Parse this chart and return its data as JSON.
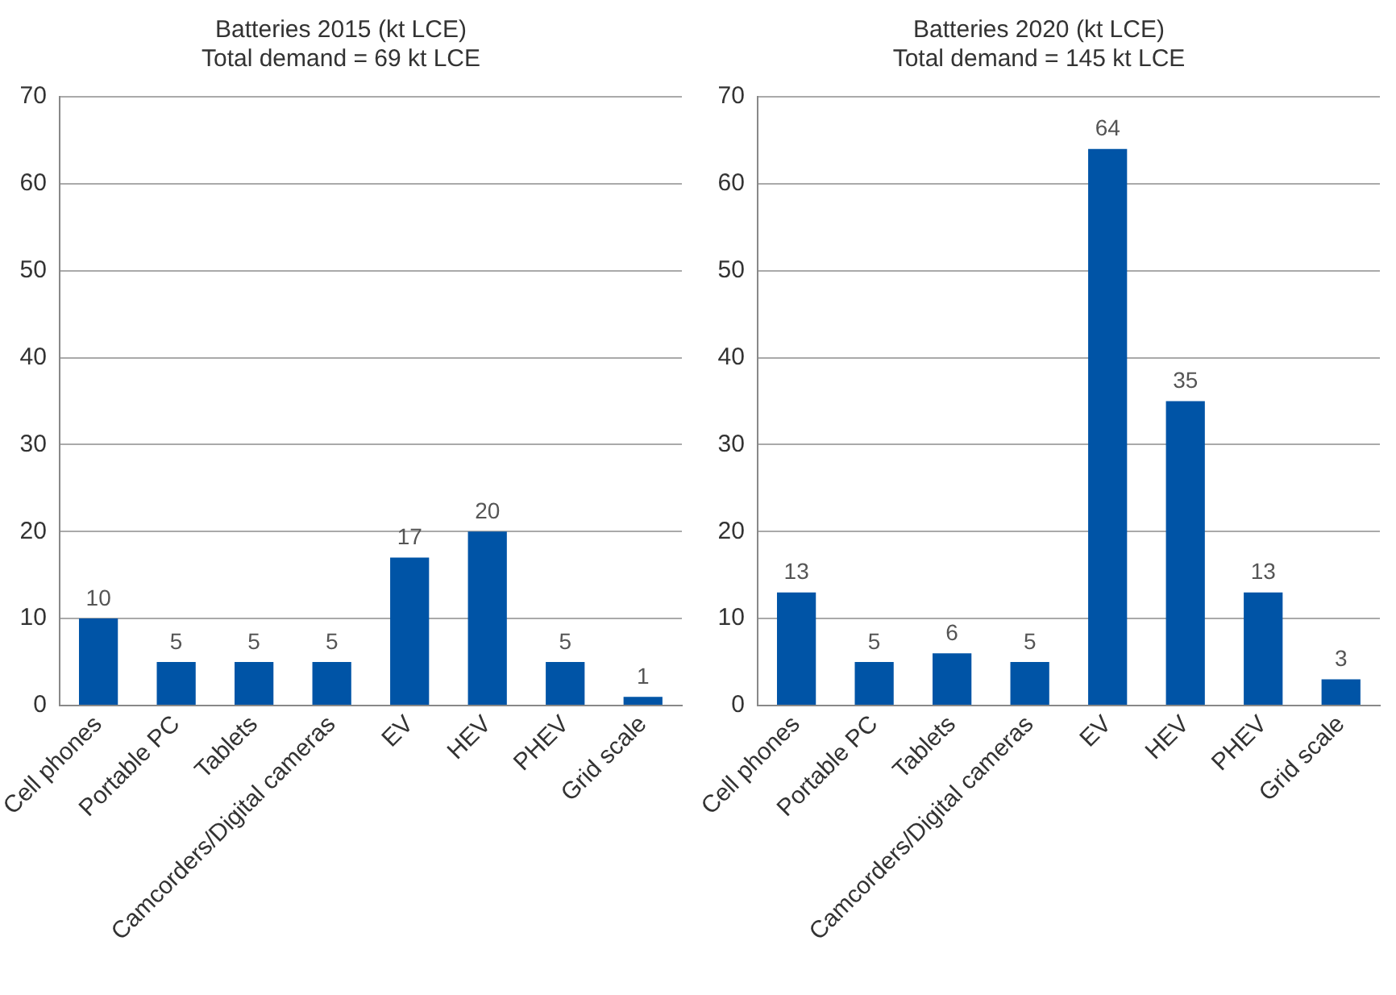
{
  "chart_data": [
    {
      "type": "bar",
      "title": "Batteries 2015 (kt LCE)",
      "subtitle": "Total demand = 69 kt LCE",
      "categories": [
        "Cell phones",
        "Portable PC",
        "Tablets",
        "Camcorders/Digital cameras",
        "EV",
        "HEV",
        "PHEV",
        "Grid scale"
      ],
      "values": [
        10,
        5,
        5,
        5,
        17,
        20,
        5,
        1
      ],
      "color": "#0054a6",
      "ylim": [
        0,
        70
      ],
      "yticks": [
        0,
        10,
        20,
        30,
        40,
        50,
        60,
        70
      ],
      "grid": "y",
      "legend": false,
      "data_labels": true
    },
    {
      "type": "bar",
      "title": "Batteries 2020 (kt LCE)",
      "subtitle": "Total demand = 145 kt LCE",
      "categories": [
        "Cell phones",
        "Portable PC",
        "Tablets",
        "Camcorders/Digital cameras",
        "EV",
        "HEV",
        "PHEV",
        "Grid scale"
      ],
      "values": [
        13,
        5,
        6,
        5,
        64,
        35,
        13,
        3
      ],
      "color": "#0054a6",
      "ylim": [
        0,
        70
      ],
      "yticks": [
        0,
        10,
        20,
        30,
        40,
        50,
        60,
        70
      ],
      "grid": "y",
      "legend": false,
      "data_labels": true
    }
  ]
}
